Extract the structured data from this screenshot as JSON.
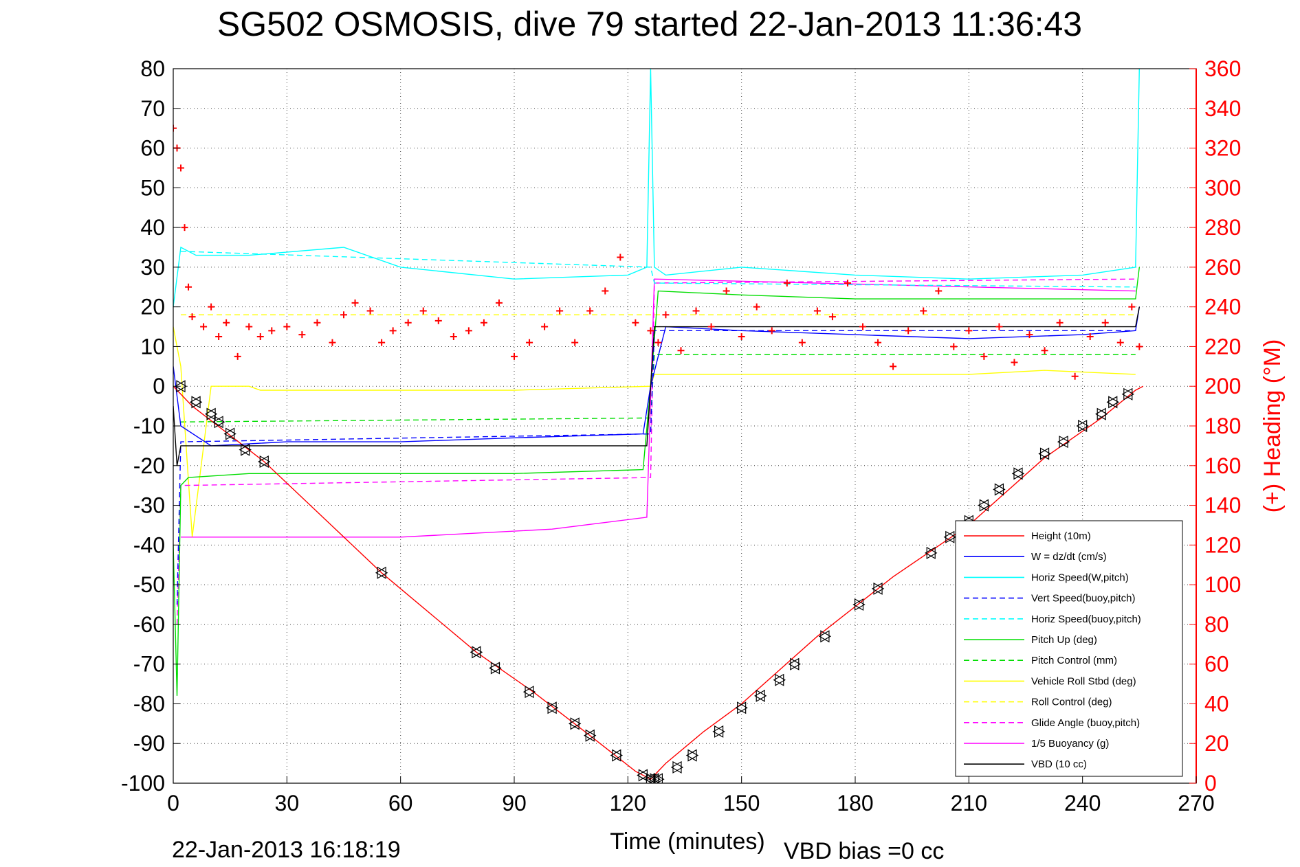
{
  "title": "SG502 OSMOSIS, dive 79 started 22-Jan-2013 11:36:43",
  "footer": {
    "timestamp": "22-Jan-2013 16:18:19",
    "vbd_bias": "VBD bias =0 cc"
  },
  "colors": {
    "height": "#ff0000",
    "w": "#0000ff",
    "horiz_speed": "#00ffff",
    "pitch": "#00dd00",
    "roll": "#ffff00",
    "glide": "#ff00ff",
    "vbd": "#000000",
    "heading": "#ff0000"
  },
  "chart_data": {
    "type": "line",
    "title": "SG502 OSMOSIS, dive 79 started 22-Jan-2013 11:36:43",
    "xlabel": "Time (minutes)",
    "ylabel": "",
    "y2label": "(+) Heading (°M)",
    "xlim": [
      0,
      270
    ],
    "ylim": [
      -100,
      80
    ],
    "y2lim": [
      0,
      360
    ],
    "grid": true,
    "legend_position": "lower-right",
    "xticks": [
      "0",
      "30",
      "60",
      "90",
      "120",
      "150",
      "180",
      "210",
      "240",
      "270"
    ],
    "yticks": [
      "80",
      "70",
      "60",
      "50",
      "40",
      "30",
      "20",
      "10",
      "0",
      "-10",
      "-20",
      "-30",
      "-40",
      "-50",
      "-60",
      "-70",
      "-80",
      "-90",
      "-100"
    ],
    "y2ticks": [
      "360",
      "340",
      "320",
      "300",
      "280",
      "260",
      "240",
      "220",
      "200",
      "180",
      "160",
      "140",
      "120",
      "100",
      "80",
      "60",
      "40",
      "20",
      "0"
    ],
    "series": [
      {
        "name": "Height (10m)",
        "color": "#ff0000",
        "style": "solid",
        "marker": "none",
        "x": [
          0,
          5,
          24,
          55,
          80,
          95,
          110,
          122,
          126,
          127,
          130,
          140,
          150,
          170,
          190,
          210,
          230,
          245,
          254,
          256
        ],
        "y": [
          0,
          -5,
          -19,
          -47,
          -67,
          -77,
          -88,
          -97,
          -99,
          -98,
          -95,
          -87,
          -80,
          -63,
          -48,
          -35,
          -18,
          -8,
          -1,
          0
        ]
      },
      {
        "name": "W = dz/dt (cm/s)",
        "color": "#0000ff",
        "style": "solid",
        "marker": "none",
        "x": [
          0,
          2,
          10,
          30,
          60,
          90,
          124,
          126,
          130,
          150,
          180,
          210,
          240,
          254,
          255
        ],
        "y": [
          5,
          -10,
          -15,
          -14,
          -14,
          -13,
          -12,
          0,
          15,
          14,
          13,
          12,
          13,
          14,
          20
        ]
      },
      {
        "name": "Horiz Speed(W,pitch)",
        "color": "#00ffff",
        "style": "solid",
        "marker": "none",
        "x": [
          0,
          2,
          6,
          20,
          45,
          60,
          90,
          120,
          125,
          126,
          127,
          130,
          150,
          180,
          210,
          240,
          254,
          255
        ],
        "y": [
          20,
          35,
          33,
          33,
          35,
          30,
          27,
          28,
          30,
          80,
          30,
          28,
          30,
          28,
          27,
          28,
          30,
          80
        ]
      },
      {
        "name": "Vert Speed(buoy,pitch)",
        "color": "#0000ff",
        "style": "dashed",
        "marker": "none",
        "x": [
          1,
          2,
          126,
          127,
          254
        ],
        "y": [
          -55,
          -14,
          -12,
          14,
          14
        ]
      },
      {
        "name": "Horiz Speed(buoy,pitch)",
        "color": "#00ffff",
        "style": "dashed",
        "marker": "none",
        "x": [
          2,
          126,
          127,
          254
        ],
        "y": [
          34,
          30,
          26,
          25
        ]
      },
      {
        "name": "Pitch Up (deg)",
        "color": "#00dd00",
        "style": "solid",
        "marker": "none",
        "x": [
          0,
          1,
          2,
          4,
          20,
          60,
          90,
          124,
          126,
          128,
          150,
          180,
          210,
          240,
          254,
          255
        ],
        "y": [
          -40,
          -78,
          -25,
          -23,
          -22,
          -22,
          -22,
          -21,
          0,
          24,
          23,
          22,
          22,
          22,
          22,
          30
        ]
      },
      {
        "name": "Pitch Control (mm)",
        "color": "#00dd00",
        "style": "dashed",
        "marker": "none",
        "x": [
          2,
          126,
          127,
          254
        ],
        "y": [
          -9,
          -8,
          8,
          8
        ]
      },
      {
        "name": "Vehicle Roll Stbd (deg)",
        "color": "#ffff00",
        "style": "solid",
        "marker": "none",
        "x": [
          0,
          2,
          5,
          10,
          20,
          23,
          40,
          60,
          90,
          126,
          127,
          130,
          150,
          180,
          210,
          230,
          254
        ],
        "y": [
          15,
          5,
          -38,
          0,
          0,
          -1,
          -1,
          -1,
          -1,
          0,
          3,
          3,
          3,
          3,
          3,
          4,
          3
        ]
      },
      {
        "name": "Roll Control (deg)",
        "color": "#ffff00",
        "style": "dashed",
        "marker": "none",
        "x": [
          2,
          126,
          127,
          254
        ],
        "y": [
          18,
          18,
          18,
          18
        ]
      },
      {
        "name": "Glide Angle (buoy,pitch)",
        "color": "#ff00ff",
        "style": "dashed",
        "marker": "none",
        "x": [
          1,
          2,
          126,
          127,
          254
        ],
        "y": [
          -60,
          -25,
          -23,
          26,
          27
        ]
      },
      {
        "name": "1/5 Buoyancy (g)",
        "color": "#ff00ff",
        "style": "solid",
        "marker": "none",
        "x": [
          2,
          60,
          100,
          125,
          127,
          254
        ],
        "y": [
          -38,
          -38,
          -36,
          -33,
          27,
          24
        ]
      },
      {
        "name": "VBD (10 cc)",
        "color": "#000000",
        "style": "solid",
        "marker": "none",
        "x": [
          0,
          1,
          2,
          125,
          127,
          254,
          255
        ],
        "y": [
          -5,
          -20,
          -15,
          -15,
          15,
          15,
          20
        ]
      }
    ],
    "heading_series": {
      "name": "(+) Heading (°M)",
      "color": "#ff0000",
      "marker": "+",
      "x": [
        0,
        1,
        2,
        3,
        4,
        5,
        8,
        10,
        12,
        14,
        17,
        20,
        23,
        26,
        30,
        34,
        38,
        42,
        45,
        48,
        52,
        55,
        58,
        62,
        66,
        70,
        74,
        78,
        82,
        86,
        90,
        94,
        98,
        102,
        106,
        110,
        114,
        118,
        122,
        126,
        128,
        130,
        134,
        138,
        142,
        146,
        150,
        154,
        158,
        162,
        166,
        170,
        174,
        178,
        182,
        186,
        190,
        194,
        198,
        202,
        206,
        210,
        214,
        218,
        222,
        226,
        230,
        234,
        238,
        242,
        246,
        250,
        253,
        255
      ],
      "y": [
        330,
        320,
        310,
        280,
        250,
        235,
        230,
        240,
        225,
        232,
        215,
        230,
        225,
        228,
        230,
        226,
        232,
        222,
        236,
        242,
        238,
        222,
        228,
        232,
        238,
        233,
        225,
        228,
        232,
        242,
        215,
        222,
        230,
        238,
        222,
        238,
        248,
        265,
        232,
        228,
        222,
        236,
        218,
        238,
        230,
        248,
        225,
        240,
        228,
        252,
        222,
        238,
        235,
        252,
        230,
        222,
        210,
        228,
        238,
        248,
        220,
        228,
        215,
        230,
        212,
        226,
        218,
        232,
        205,
        225,
        232,
        222,
        240,
        220
      ]
    },
    "vbd_markers": {
      "marker": "triangle",
      "x": [
        2,
        6,
        10,
        12,
        15,
        19,
        24,
        55,
        80,
        85,
        94,
        100,
        106,
        110,
        117,
        124,
        126,
        127,
        128,
        133,
        137,
        144,
        150,
        155,
        160,
        164,
        172,
        181,
        186,
        200,
        205,
        210,
        214,
        218,
        223,
        230,
        235,
        240,
        245,
        248,
        252
      ],
      "y": [
        0,
        -4,
        -7,
        -9,
        -12,
        -16,
        -19,
        -47,
        -67,
        -71,
        -77,
        -81,
        -85,
        -88,
        -93,
        -98,
        -99,
        -99,
        -99,
        -96,
        -93,
        -87,
        -81,
        -78,
        -74,
        -70,
        -63,
        -55,
        -51,
        -42,
        -38,
        -34,
        -30,
        -26,
        -22,
        -17,
        -14,
        -10,
        -7,
        -4,
        -2
      ]
    }
  }
}
